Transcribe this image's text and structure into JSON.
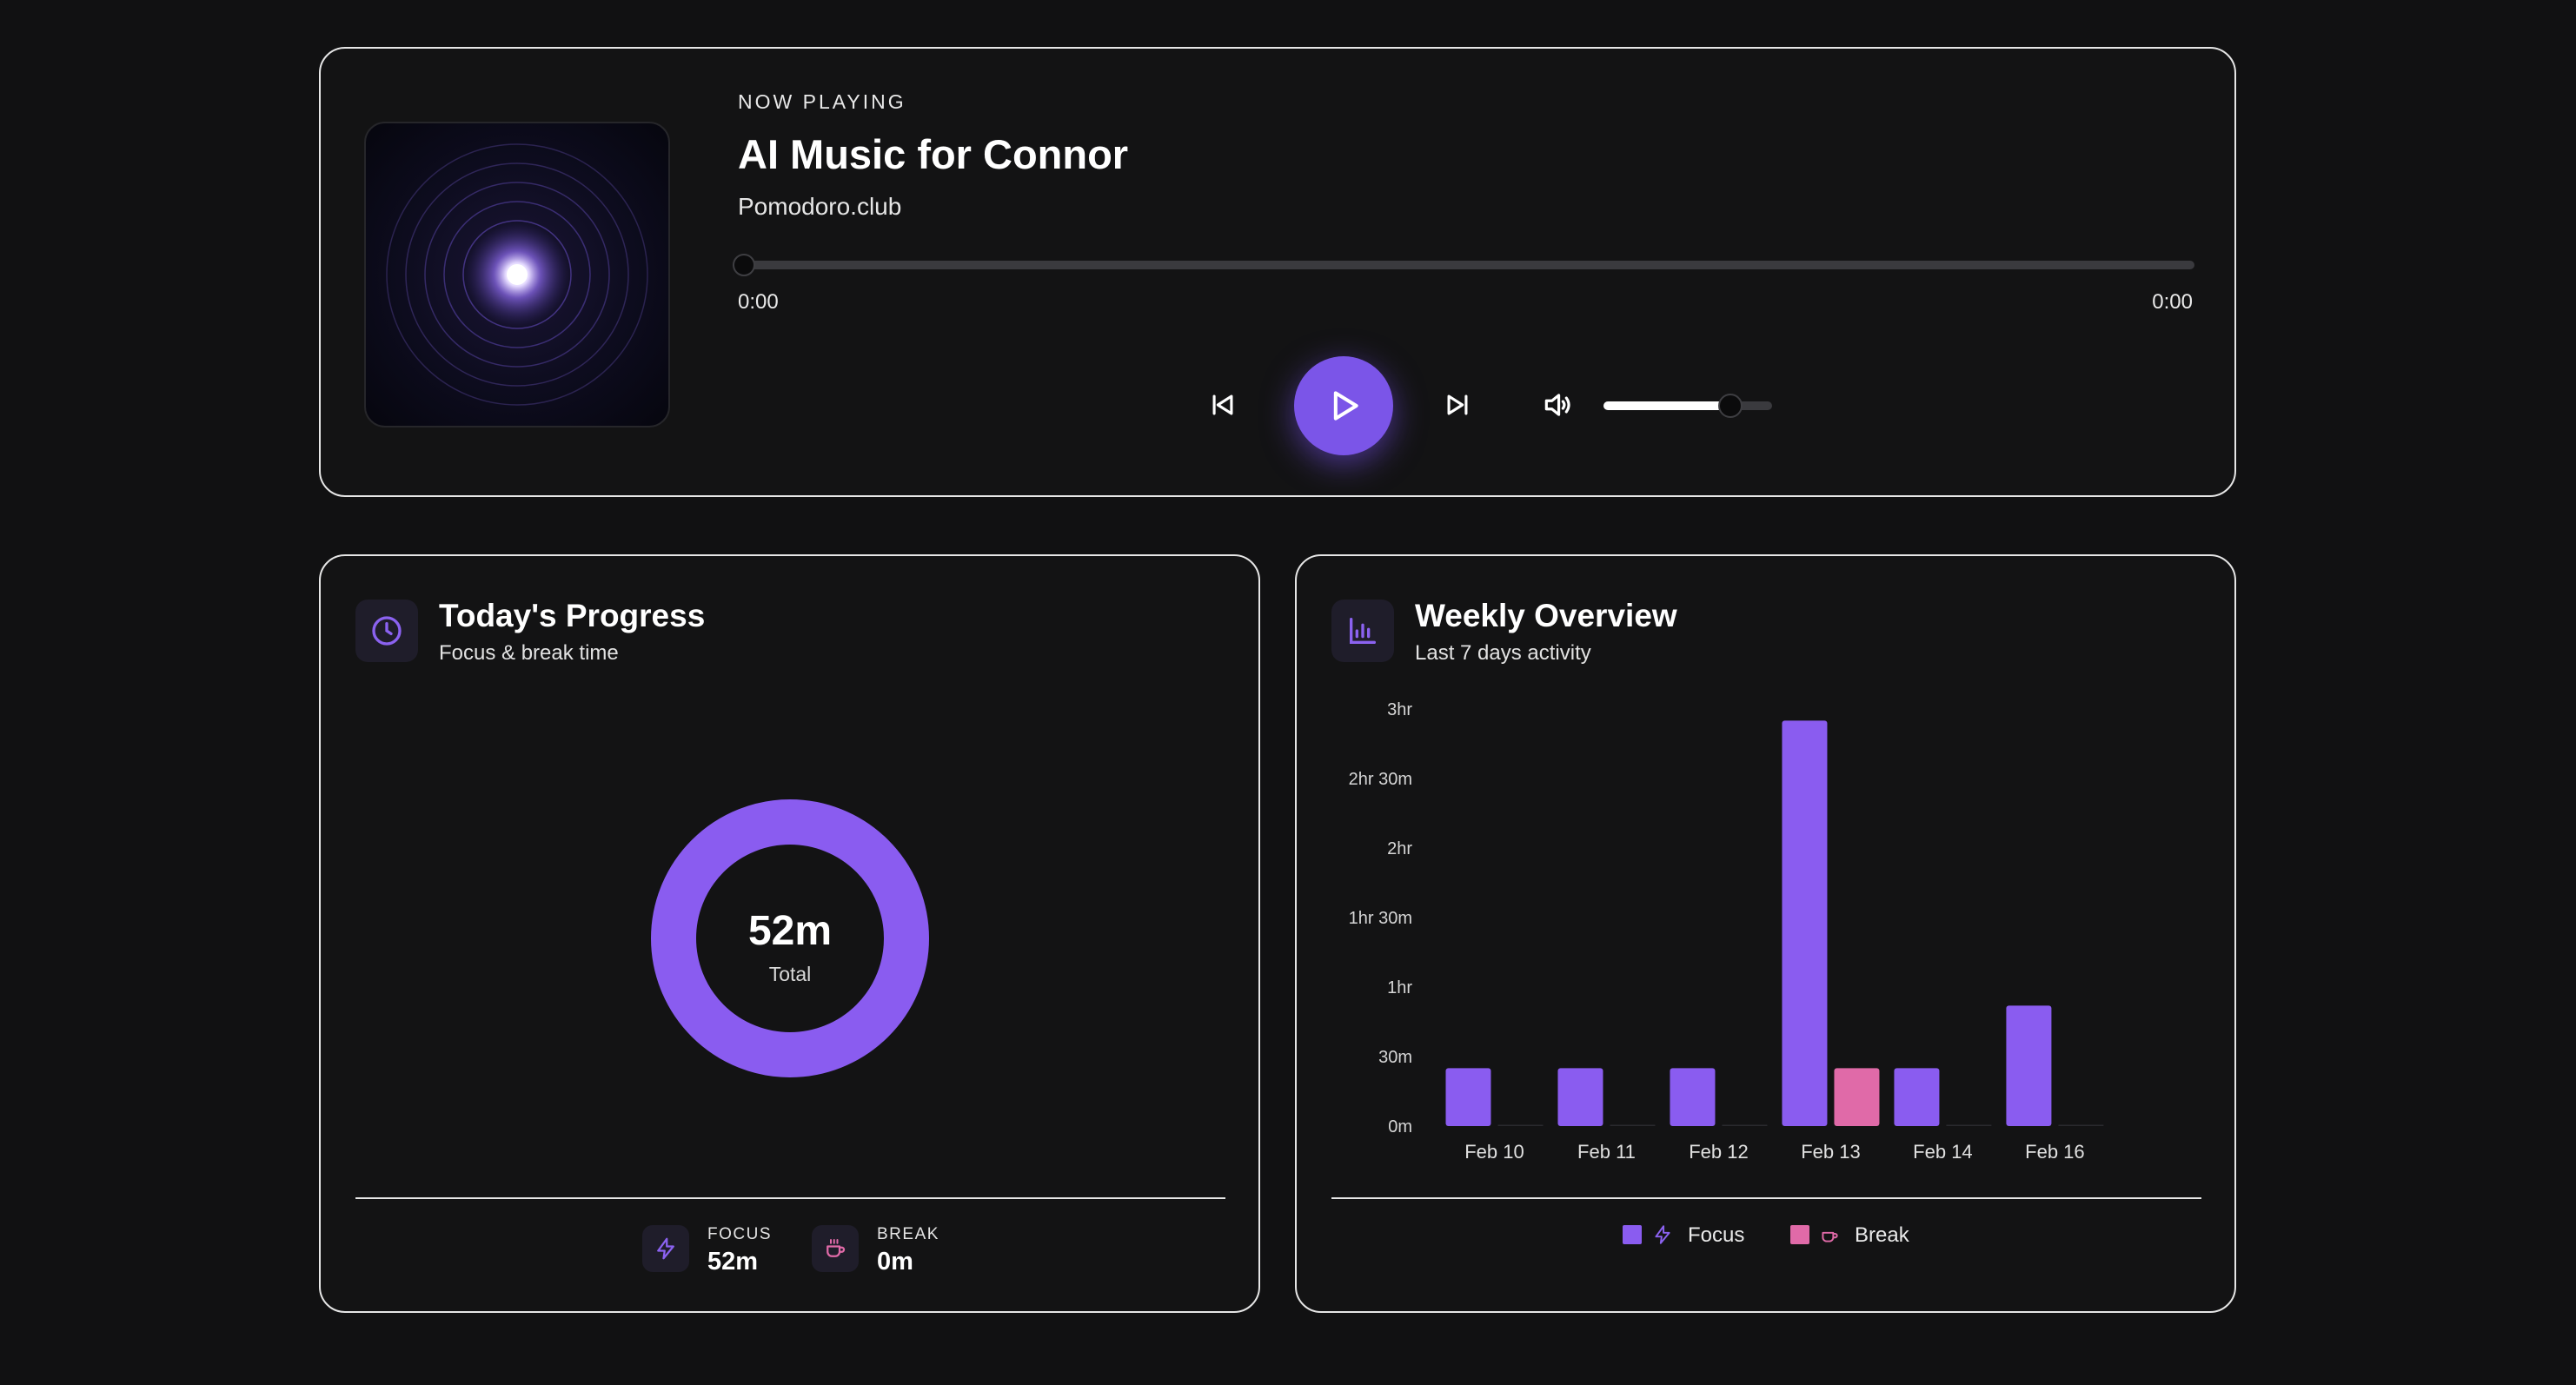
{
  "player": {
    "eyebrow": "NOW PLAYING",
    "title": "AI Music for Connor",
    "artist": "Pomodoro.club",
    "time_current": "0:00",
    "time_total": "0:00",
    "progress_fraction": 0,
    "volume_fraction": 0.75
  },
  "progress": {
    "title": "Today's Progress",
    "subtitle": "Focus & break time",
    "total_value": "52m",
    "total_label": "Total",
    "focus_label": "FOCUS",
    "focus_value": "52m",
    "break_label": "BREAK",
    "break_value": "0m",
    "focus_minutes": 52,
    "break_minutes": 0
  },
  "weekly": {
    "title": "Weekly Overview",
    "subtitle": "Last 7 days activity",
    "legend_focus": "Focus",
    "legend_break": "Break"
  },
  "colors": {
    "accent": "#7b55e8",
    "focus": "#8a5cf0",
    "break": "#e06aa8",
    "background": "#111112"
  },
  "icons": {
    "player": [
      "previous-icon",
      "play-icon",
      "next-icon",
      "volume-icon"
    ],
    "progress": "clock-icon",
    "weekly": "bar-chart-icon",
    "focus": "lightning-icon",
    "break": "coffee-cup-icon"
  },
  "chart_data": [
    {
      "type": "pie",
      "values": [
        52,
        0
      ],
      "categories": [
        "Focus",
        "Break"
      ],
      "unit": "minutes"
    },
    {
      "type": "bar",
      "categories": [
        "Feb 10",
        "Feb 11",
        "Feb 12",
        "Feb 13",
        "Feb 14",
        "Feb 16"
      ],
      "y_ticks": [
        "0m",
        "30m",
        "1hr",
        "1hr 30m",
        "2hr",
        "2hr 30m",
        "3hr"
      ],
      "ylim": [
        0,
        180
      ],
      "unit": "minutes",
      "series": [
        {
          "name": "Focus",
          "values": [
            25,
            25,
            25,
            175,
            25,
            52
          ]
        },
        {
          "name": "Break",
          "values": [
            0,
            0,
            0,
            25,
            0,
            0
          ]
        }
      ],
      "legend": "bottom",
      "grid": false
    }
  ]
}
